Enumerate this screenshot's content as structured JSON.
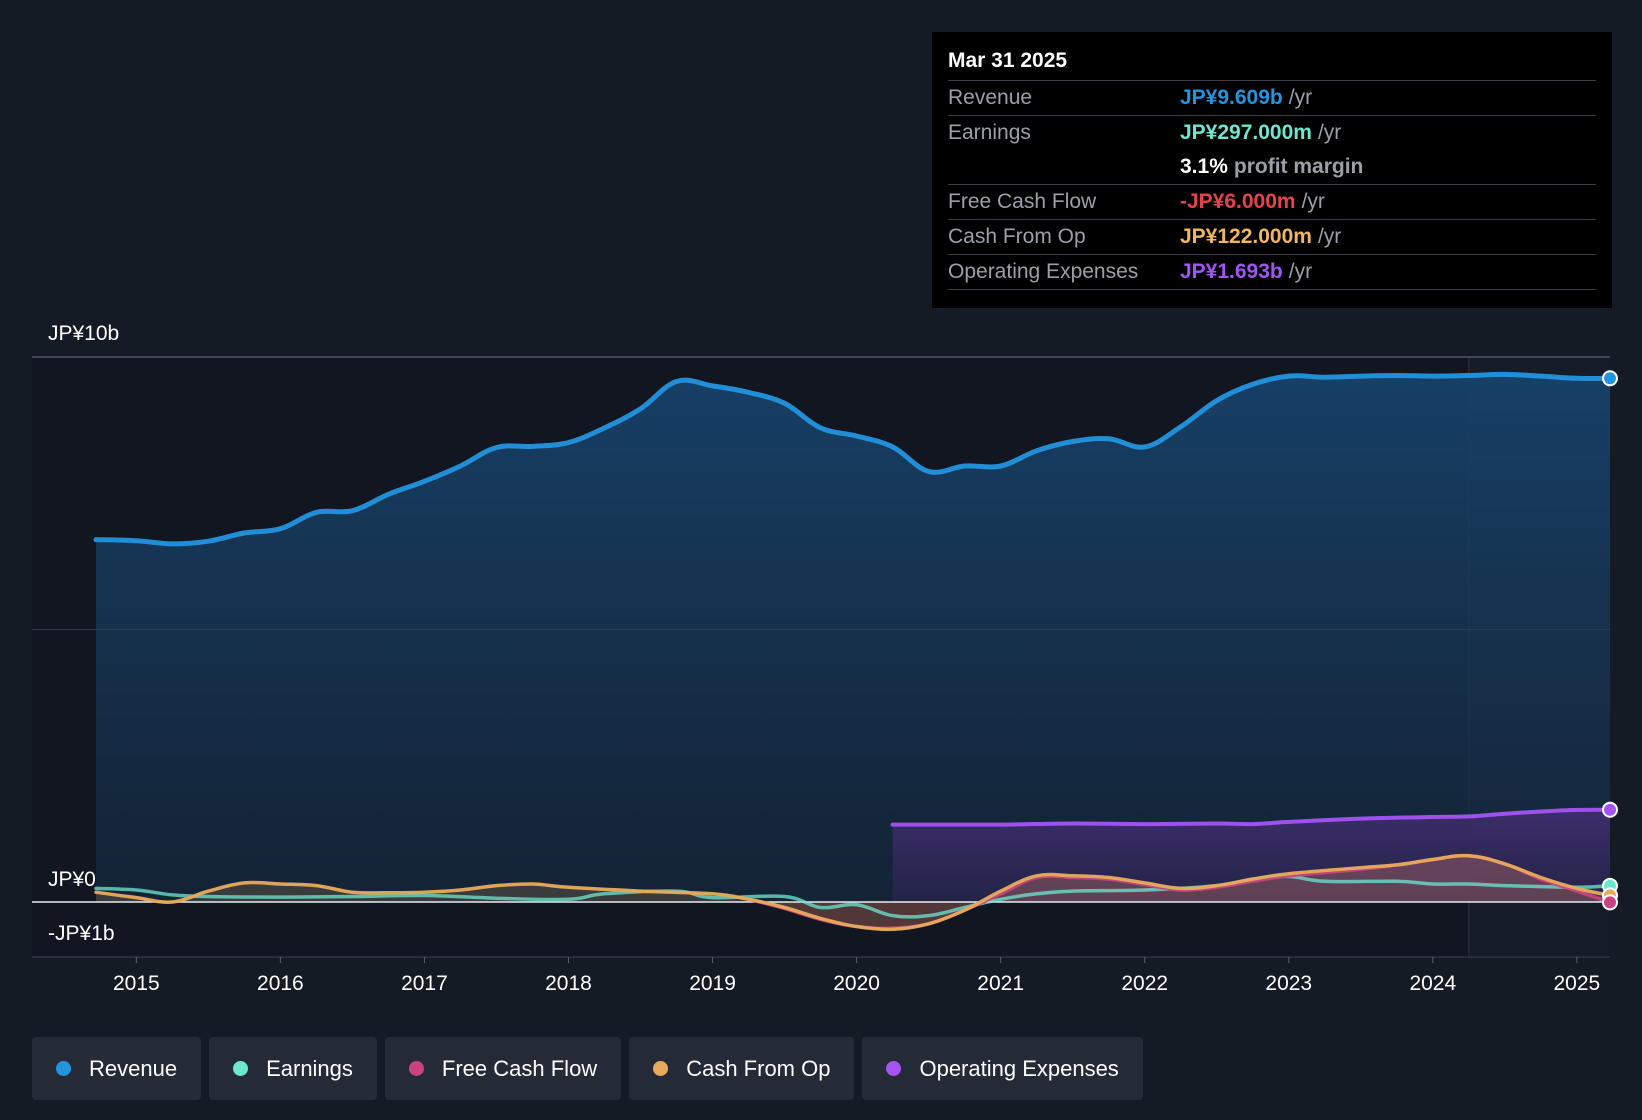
{
  "tooltip": {
    "date": "Mar 31 2025",
    "rows": [
      {
        "label": "Revenue",
        "value": "JP¥9.609b",
        "unit": "/yr",
        "color": "#2394df"
      },
      {
        "label": "Earnings",
        "value": "JP¥297.000m",
        "unit": "/yr",
        "color": "#6ee7d0"
      },
      {
        "label": "",
        "value": "3.1%",
        "unit": "profit margin",
        "color": "#ffffff"
      },
      {
        "label": "Free Cash Flow",
        "value": "-JP¥6.000m",
        "unit": "/yr",
        "color": "#e8424f"
      },
      {
        "label": "Cash From Op",
        "value": "JP¥122.000m",
        "unit": "/yr",
        "color": "#f2b560"
      },
      {
        "label": "Operating Expenses",
        "value": "JP¥1.693b",
        "unit": "/yr",
        "color": "#a453f4"
      }
    ]
  },
  "legend": [
    {
      "label": "Revenue",
      "color": "#2394df"
    },
    {
      "label": "Earnings",
      "color": "#6ee7d0"
    },
    {
      "label": "Free Cash Flow",
      "color": "#c8437f"
    },
    {
      "label": "Cash From Op",
      "color": "#e8ab5c"
    },
    {
      "label": "Operating Expenses",
      "color": "#a453f4"
    }
  ],
  "chart_data": {
    "type": "line",
    "title": "",
    "y_axis_labels": {
      "top": "JP¥10b",
      "zero": "JP¥0",
      "bottom": "-JP¥1b"
    },
    "ylim": [
      -1,
      10
    ],
    "xlim": [
      2014.72,
      2025.23
    ],
    "x_ticks": [
      2015,
      2016,
      2017,
      2018,
      2019,
      2020,
      2021,
      2022,
      2023,
      2024,
      2025
    ],
    "x_tick_labels": [
      "2015",
      "2016",
      "2017",
      "2018",
      "2019",
      "2020",
      "2021",
      "2022",
      "2023",
      "2024",
      "2025"
    ],
    "highlight_start": 2024.25,
    "series": [
      {
        "name": "Revenue",
        "color": "#2394df",
        "area": true,
        "x": [
          2014.72,
          2015.0,
          2015.25,
          2015.5,
          2015.75,
          2016.0,
          2016.25,
          2016.5,
          2016.75,
          2017.0,
          2017.25,
          2017.5,
          2017.75,
          2018.0,
          2018.25,
          2018.5,
          2018.75,
          2019.0,
          2019.25,
          2019.5,
          2019.75,
          2020.0,
          2020.25,
          2020.5,
          2020.75,
          2021.0,
          2021.25,
          2021.5,
          2021.75,
          2022.0,
          2022.25,
          2022.5,
          2022.75,
          2023.0,
          2023.25,
          2023.5,
          2023.75,
          2024.0,
          2024.25,
          2024.5,
          2024.75,
          2025.0,
          2025.23
        ],
        "values": [
          6.65,
          6.63,
          6.57,
          6.62,
          6.77,
          6.85,
          7.15,
          7.18,
          7.48,
          7.72,
          8.0,
          8.34,
          8.36,
          8.43,
          8.7,
          9.05,
          9.55,
          9.47,
          9.35,
          9.15,
          8.7,
          8.55,
          8.35,
          7.9,
          8.0,
          8.0,
          8.28,
          8.45,
          8.5,
          8.35,
          8.72,
          9.2,
          9.5,
          9.65,
          9.63,
          9.65,
          9.66,
          9.65,
          9.66,
          9.68,
          9.65,
          9.609,
          9.609
        ]
      },
      {
        "name": "Operating Expenses",
        "color": "#a453f4",
        "area": true,
        "x": [
          2020.25,
          2020.5,
          2021.0,
          2021.5,
          2022.0,
          2022.5,
          2022.75,
          2023.0,
          2023.5,
          2024.0,
          2024.25,
          2024.5,
          2024.75,
          2025.0,
          2025.23
        ],
        "values": [
          1.42,
          1.42,
          1.42,
          1.44,
          1.43,
          1.44,
          1.43,
          1.47,
          1.53,
          1.56,
          1.57,
          1.62,
          1.66,
          1.69,
          1.693
        ]
      },
      {
        "name": "Earnings",
        "color": "#6ee7d0",
        "area": false,
        "x": [
          2014.72,
          2015.0,
          2015.25,
          2015.5,
          2016.0,
          2016.5,
          2017.0,
          2017.5,
          2018.0,
          2018.25,
          2018.75,
          2019.0,
          2019.5,
          2019.75,
          2020.0,
          2020.25,
          2020.5,
          2020.75,
          2021.0,
          2021.25,
          2021.5,
          2022.0,
          2022.5,
          2022.75,
          2023.0,
          2023.25,
          2023.75,
          2024.0,
          2024.25,
          2024.5,
          2025.0,
          2025.23
        ],
        "values": [
          0.25,
          0.22,
          0.13,
          0.1,
          0.09,
          0.1,
          0.12,
          0.07,
          0.05,
          0.15,
          0.2,
          0.08,
          0.1,
          -0.1,
          -0.05,
          -0.25,
          -0.25,
          -0.1,
          0.05,
          0.15,
          0.2,
          0.22,
          0.3,
          0.42,
          0.47,
          0.38,
          0.38,
          0.33,
          0.33,
          0.3,
          0.27,
          0.297
        ]
      },
      {
        "name": "Cash From Op",
        "color": "#e8ab5c",
        "area": false,
        "x": [
          2014.72,
          2015.0,
          2015.25,
          2015.5,
          2015.75,
          2016.0,
          2016.25,
          2016.5,
          2016.75,
          2017.0,
          2017.25,
          2017.5,
          2017.75,
          2018.0,
          2018.5,
          2019.0,
          2019.25,
          2019.5,
          2019.75,
          2020.0,
          2020.25,
          2020.5,
          2020.75,
          2021.0,
          2021.25,
          2021.5,
          2021.75,
          2022.0,
          2022.25,
          2022.5,
          2022.75,
          2023.0,
          2023.5,
          2023.75,
          2024.0,
          2024.25,
          2024.5,
          2024.75,
          2025.0,
          2025.23
        ],
        "values": [
          0.18,
          0.08,
          0.0,
          0.2,
          0.35,
          0.33,
          0.3,
          0.18,
          0.17,
          0.18,
          0.22,
          0.3,
          0.33,
          0.27,
          0.2,
          0.15,
          0.05,
          -0.1,
          -0.3,
          -0.45,
          -0.5,
          -0.4,
          -0.15,
          0.2,
          0.48,
          0.48,
          0.45,
          0.35,
          0.25,
          0.3,
          0.42,
          0.52,
          0.63,
          0.68,
          0.78,
          0.85,
          0.7,
          0.45,
          0.25,
          0.122
        ]
      },
      {
        "name": "Free Cash Flow",
        "color": "#c8437f",
        "area": false,
        "x": [
          2019.25,
          2019.5,
          2019.75,
          2020.0,
          2020.25,
          2020.5,
          2020.75,
          2021.0,
          2021.25,
          2021.5,
          2021.75,
          2022.0,
          2022.25,
          2022.5,
          2022.75,
          2023.0,
          2023.5,
          2023.75,
          2024.0,
          2024.25,
          2024.5,
          2024.75,
          2025.0,
          2025.23
        ],
        "values": [
          0.05,
          -0.12,
          -0.32,
          -0.45,
          -0.48,
          -0.4,
          -0.15,
          0.15,
          0.45,
          0.45,
          0.42,
          0.32,
          0.22,
          0.27,
          0.38,
          0.48,
          0.6,
          0.68,
          0.78,
          0.85,
          0.7,
          0.42,
          0.2,
          -0.006
        ]
      }
    ]
  }
}
